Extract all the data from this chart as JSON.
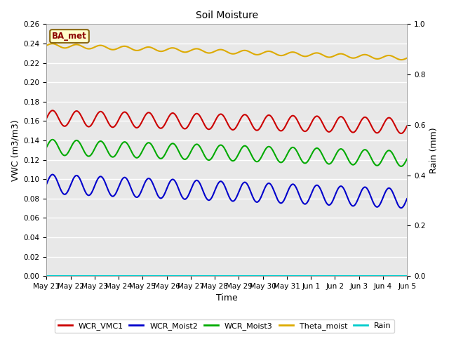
{
  "title": "Soil Moisture",
  "xlabel": "Time",
  "ylabel_left": "VWC (m3/m3)",
  "ylabel_right": "Rain (mm)",
  "annotation": "BA_met",
  "ylim_left": [
    0.0,
    0.26
  ],
  "ylim_right": [
    0.0,
    1.0
  ],
  "left_yticks": [
    0.0,
    0.02,
    0.04,
    0.06,
    0.08,
    0.1,
    0.12,
    0.14,
    0.16,
    0.18,
    0.2,
    0.22,
    0.24,
    0.26
  ],
  "right_yticks": [
    0.0,
    0.2,
    0.4,
    0.6,
    0.8,
    1.0
  ],
  "num_points": 1000,
  "series": {
    "WCR_VMC1": {
      "color": "#cc0000",
      "base": 0.163,
      "trend": -0.008,
      "amplitude": 0.008,
      "period": 1.0,
      "noise": 0.0
    },
    "WCR_Moist2": {
      "color": "#0000cc",
      "base": 0.095,
      "trend": -0.015,
      "amplitude": 0.01,
      "period": 1.0,
      "noise": 0.0
    },
    "WCR_Moist3": {
      "color": "#00aa00",
      "base": 0.133,
      "trend": -0.012,
      "amplitude": 0.008,
      "period": 1.0,
      "noise": 0.0
    },
    "Theta_moist": {
      "color": "#ddaa00",
      "base": 0.238,
      "trend": -0.013,
      "amplitude": 0.002,
      "period": 1.0,
      "noise": 0.0
    },
    "Rain": {
      "color": "#00cccc",
      "base": 0.0,
      "trend": 0.0,
      "amplitude": 0.0,
      "period": 1.0,
      "noise": 0.0
    }
  },
  "legend": [
    "WCR_VMC1",
    "WCR_Moist2",
    "WCR_Moist3",
    "Theta_moist",
    "Rain"
  ],
  "legend_colors": [
    "#cc0000",
    "#0000cc",
    "#00aa00",
    "#ddaa00",
    "#00cccc"
  ],
  "plot_bg_color": "#e8e8e8",
  "grid_color": "#ffffff",
  "fig_color": "#ffffff",
  "xtick_labels": [
    "May 21",
    "May 22",
    "May 23",
    "May 24",
    "May 25",
    "May 26",
    "May 27",
    "May 28",
    "May 29",
    "May 30",
    "May 31",
    "Jun 1",
    "Jun 2",
    "Jun 3",
    "Jun 4",
    "Jun 5"
  ],
  "xtick_positions": [
    0,
    1,
    2,
    3,
    4,
    5,
    6,
    7,
    8,
    9,
    10,
    11,
    12,
    13,
    14,
    15
  ],
  "linewidth": 1.5,
  "title_fontsize": 10,
  "axis_fontsize": 9,
  "tick_fontsize": 7.5,
  "legend_fontsize": 8
}
